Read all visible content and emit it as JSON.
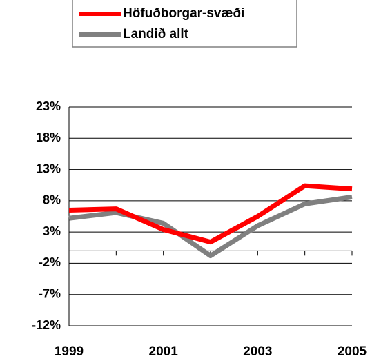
{
  "chart_data": {
    "type": "line",
    "x": [
      1999,
      2000,
      2001,
      2002,
      2003,
      2004,
      2005
    ],
    "xlim": [
      1999,
      2005
    ],
    "xticks": [
      1999,
      2001,
      2003,
      2005
    ],
    "ylim": [
      -12,
      23
    ],
    "yticks": [
      {
        "value": -12,
        "label": "-12%"
      },
      {
        "value": -7,
        "label": "-7%"
      },
      {
        "value": -2,
        "label": "-2%"
      },
      {
        "value": 3,
        "label": "3%"
      },
      {
        "value": 8,
        "label": "8%"
      },
      {
        "value": 13,
        "label": "13%"
      },
      {
        "value": 18,
        "label": "18%"
      },
      {
        "value": 23,
        "label": "23%"
      }
    ],
    "grid": true,
    "legend": "top",
    "series": [
      {
        "name": "Höfuðborgar-svæði",
        "color": "#ff0000",
        "values": [
          6.5,
          6.7,
          3.4,
          1.4,
          5.5,
          10.4,
          9.9
        ]
      },
      {
        "name": "Landið allt",
        "color": "#808080",
        "values": [
          5.2,
          6.1,
          4.4,
          -0.8,
          4.0,
          7.5,
          8.6
        ]
      }
    ]
  }
}
